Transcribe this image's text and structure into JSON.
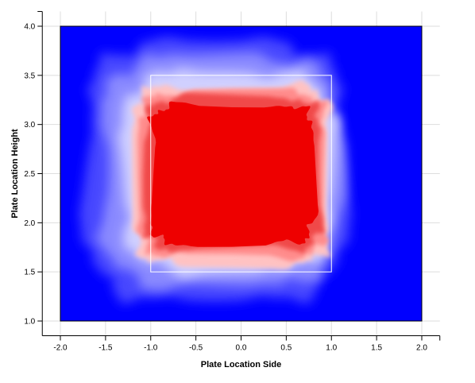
{
  "chart_data": {
    "type": "heatmap",
    "title": "",
    "xlabel": "Plate Location Side",
    "ylabel": "Plate Location Height",
    "xlim": [
      -2.0,
      2.0
    ],
    "ylim": [
      1.0,
      4.0
    ],
    "axis_extent": {
      "x": [
        -2.2,
        2.2
      ],
      "y": [
        0.85,
        4.15
      ]
    },
    "x_ticks": [
      -2.0,
      -1.5,
      -1.0,
      -0.5,
      0.0,
      0.5,
      1.0,
      1.5,
      2.0
    ],
    "x_tick_labels": [
      "-2.0",
      "-1.5",
      "-1.0",
      "-0.5",
      "0.0",
      "0.5",
      "1.0",
      "1.5",
      "2.0"
    ],
    "y_ticks": [
      1.0,
      1.5,
      2.0,
      2.5,
      3.0,
      3.5,
      4.0
    ],
    "y_tick_labels": [
      "1.0",
      "1.5",
      "2.0",
      "2.5",
      "3.0",
      "3.5",
      "4.0"
    ],
    "grid": true,
    "strike_zone": {
      "x": [
        -1.0,
        1.0
      ],
      "y": [
        1.5,
        3.5
      ]
    },
    "colors": {
      "low": "#0000ff",
      "high": "#ee0000",
      "strike_zone": "#ffffff",
      "grid": "#dddddd"
    },
    "density_levels": [
      {
        "level": 1,
        "color": "#4646ff",
        "x": [
          -1.72,
          1.15
        ],
        "y": [
          1.2,
          3.85
        ]
      },
      {
        "level": 2,
        "color": "#8a8aff",
        "x": [
          -1.55,
          1.08
        ],
        "y": [
          1.35,
          3.7
        ]
      },
      {
        "level": 3,
        "color": "#d0d0ff",
        "x": [
          -1.32,
          1.02
        ],
        "y": [
          1.5,
          3.55
        ]
      },
      {
        "level": 4,
        "color": "#ffc2c2",
        "x": [
          -1.18,
          0.97
        ],
        "y": [
          1.58,
          3.4
        ]
      },
      {
        "level": 5,
        "color": "#ff8c8c",
        "x": [
          -1.12,
          0.93
        ],
        "y": [
          1.65,
          3.33
        ]
      },
      {
        "level": 6,
        "color": "#f04848",
        "x": [
          -1.06,
          0.88
        ],
        "y": [
          1.72,
          3.27
        ]
      },
      {
        "level": 7,
        "color": "#ee0000",
        "x": [
          -1.0,
          0.8
        ],
        "y": [
          1.78,
          3.2
        ]
      }
    ]
  }
}
